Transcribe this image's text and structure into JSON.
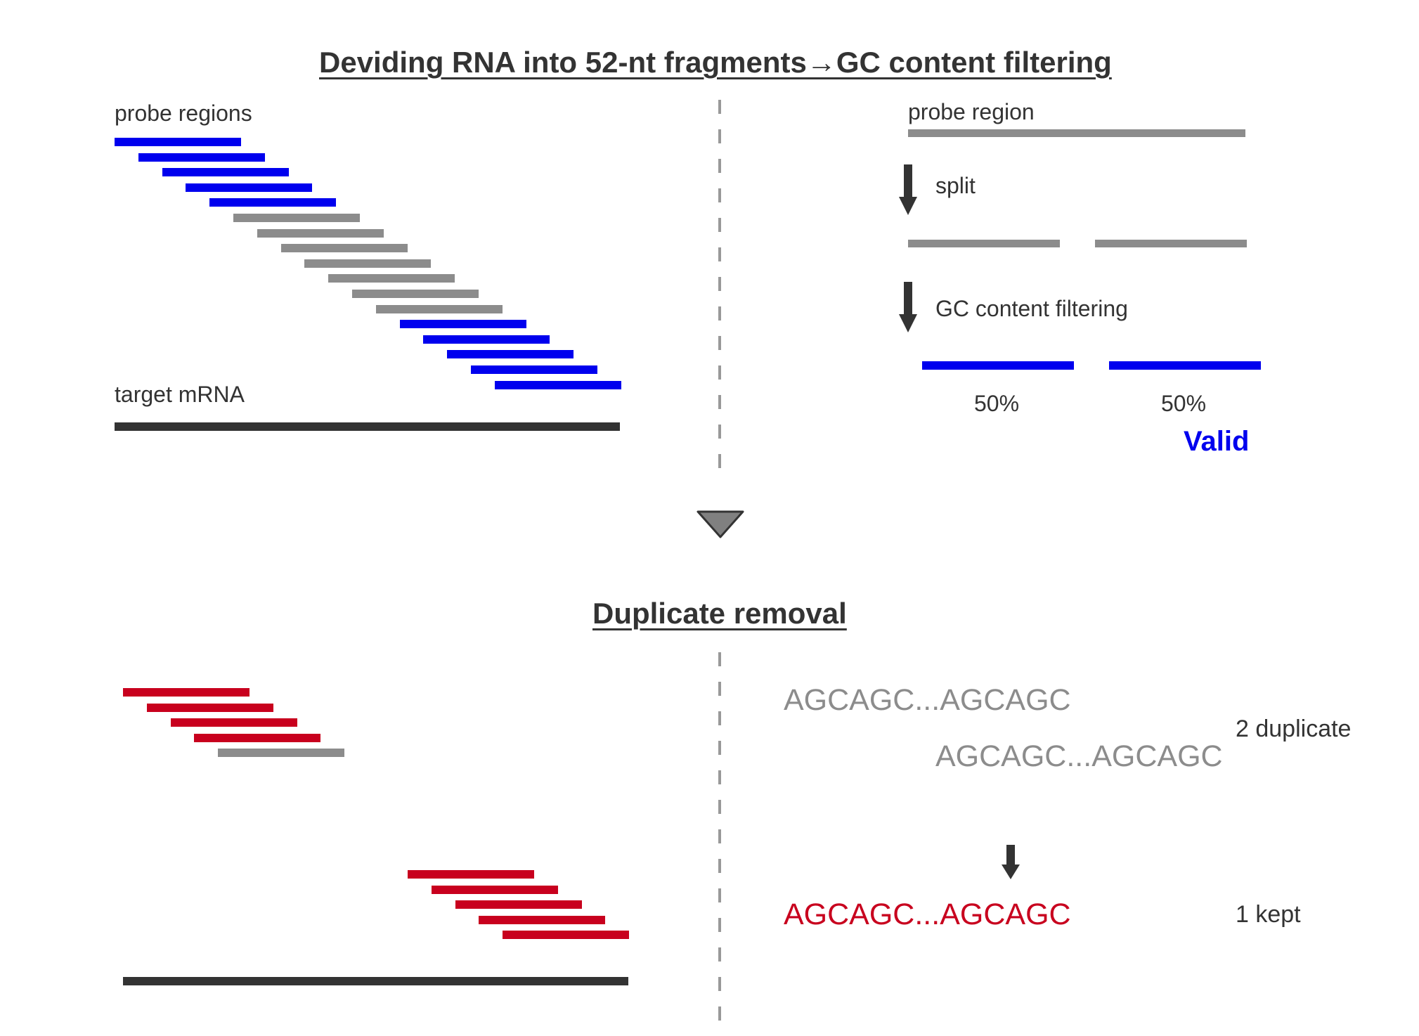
{
  "section1": {
    "title": "Deviding RNA into 52-nt fragments→GC content filtering",
    "probe_regions_label": "probe regions",
    "target_label": "target mRNA",
    "probe_region_label": "probe region",
    "split_label": "split",
    "gc_filter_label": "GC content filtering",
    "gc_left": "50%",
    "gc_right": "50%",
    "valid_label": "Valid"
  },
  "section2": {
    "title": "Duplicate removal",
    "dup_seq_1": "AGCAGC...AGCAGC",
    "dup_seq_2": "AGCAGC...AGCAGC",
    "dup_label": "2 duplicate",
    "kept_seq": "AGCAGC...AGCAGC",
    "kept_label": "1 kept"
  },
  "colors": {
    "valid_blue": "#0000ee",
    "filtered_gray": "#8c8c8c",
    "duplicate_red": "#c8001e",
    "mrna_dark": "#333333"
  },
  "probe_sets": {
    "top_probe_status": [
      "valid",
      "valid",
      "valid",
      "valid",
      "valid",
      "filtered",
      "filtered",
      "filtered",
      "filtered",
      "filtered",
      "filtered",
      "filtered",
      "valid",
      "valid",
      "valid",
      "valid",
      "valid"
    ],
    "bottom_cluster_1_status": [
      "duplicate",
      "duplicate",
      "duplicate",
      "duplicate",
      "filtered"
    ],
    "bottom_cluster_2_status": [
      "duplicate",
      "duplicate",
      "duplicate",
      "duplicate",
      "duplicate"
    ]
  }
}
